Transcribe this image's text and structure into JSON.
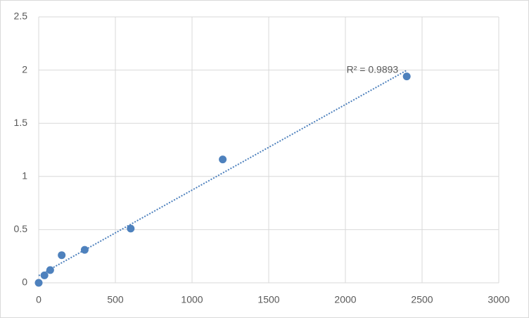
{
  "chart_data": {
    "type": "scatter",
    "x": [
      0,
      37.5,
      75,
      150,
      300,
      600,
      1200,
      2400
    ],
    "values": [
      0,
      0.07,
      0.12,
      0.26,
      0.31,
      0.51,
      1.16,
      1.94
    ],
    "color": "#4e81bd",
    "xlim": [
      0,
      3000
    ],
    "xticks": [
      0,
      500,
      1000,
      1500,
      2000,
      2500,
      3000
    ],
    "ylim": [
      0,
      2.5
    ],
    "yticks": [
      0,
      0.5,
      1,
      1.5,
      2,
      2.5
    ],
    "grid": true,
    "trendline": "linear",
    "annotation": "R² = 0.9893"
  }
}
